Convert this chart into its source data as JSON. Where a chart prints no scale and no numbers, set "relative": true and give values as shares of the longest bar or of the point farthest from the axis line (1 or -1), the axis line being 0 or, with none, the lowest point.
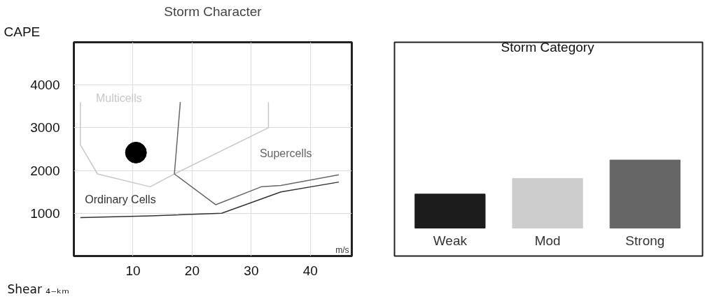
{
  "chart_data": [
    {
      "type": "line",
      "title": "Storm Character",
      "xlabel": "Shear ₄₋ₖₘ",
      "ylabel": "CAPE",
      "xlim": [
        0,
        47
      ],
      "ylim": [
        0,
        5000
      ],
      "xticks": [
        10,
        20,
        30,
        40
      ],
      "yticks": [
        1000,
        2000,
        3000,
        4000
      ],
      "grid": true,
      "series": [
        {
          "color": "#c8c8c8",
          "x": [
            1.1,
            1.1,
            4.0,
            12.9,
            17.0,
            32.9,
            32.9
          ],
          "values": [
            3600,
            2600,
            1920,
            1620,
            1920,
            3000,
            3600
          ]
        },
        {
          "color": "#666666",
          "x": [
            18.0,
            17.0,
            24.0,
            31.7,
            35.0,
            44.8
          ],
          "values": [
            3600,
            1920,
            1200,
            1620,
            1650,
            1900
          ]
        },
        {
          "color": "#333333",
          "x": [
            1.1,
            13.0,
            25.0,
            35.0,
            44.8
          ],
          "values": [
            900,
            940,
            1000,
            1500,
            1730
          ]
        },
        {
          "type": "scatter",
          "marker": "circle",
          "color": "#000000",
          "x": [
            10.5
          ],
          "values": [
            2420
          ]
        }
      ],
      "annotations": [
        "Multicells",
        "Supercells",
        "Ordinary Cells",
        "m/s"
      ]
    },
    {
      "type": "bar",
      "title": "Storm Category",
      "relative": true,
      "categories": [
        "Weak",
        "Mod",
        "Strong"
      ],
      "values": [
        0.5,
        0.73,
        1
      ],
      "colors": [
        "#1c1c1c",
        "#cccccc",
        "#666666"
      ]
    }
  ]
}
